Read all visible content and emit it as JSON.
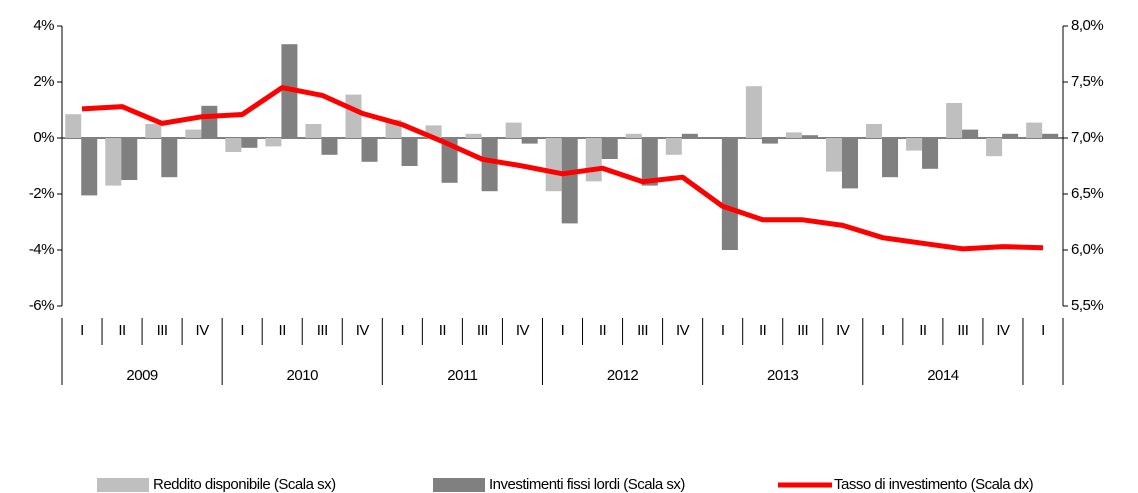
{
  "chart_data": {
    "type": "bar",
    "categories": [
      "I",
      "II",
      "III",
      "IV",
      "I",
      "II",
      "III",
      "IV",
      "I",
      "II",
      "III",
      "IV",
      "I",
      "II",
      "III",
      "IV",
      "I",
      "II",
      "III",
      "IV",
      "I",
      "II",
      "III",
      "IV",
      "I"
    ],
    "year_labels": [
      "2009",
      "2010",
      "2011",
      "2012",
      "2013",
      "2014"
    ],
    "series": [
      {
        "name": "Reddito disponibile (Scala sx)",
        "color": "#bfbfbf",
        "type": "bar",
        "values": [
          0.85,
          -1.7,
          0.5,
          0.3,
          -0.5,
          -0.3,
          0.5,
          1.55,
          0.65,
          0.45,
          0.15,
          0.55,
          -1.9,
          -1.55,
          0.15,
          -0.6,
          0.0,
          1.85,
          0.2,
          -1.2,
          0.5,
          -0.45,
          1.25,
          -0.65,
          0.55
        ]
      },
      {
        "name": "Investimenti fissi lordi (Scala sx)",
        "color": "#808080",
        "type": "bar",
        "values": [
          -2.05,
          -1.5,
          -1.4,
          1.15,
          -0.35,
          3.35,
          -0.6,
          -0.85,
          -1.0,
          -1.6,
          -1.9,
          -0.2,
          -3.05,
          -0.75,
          -1.7,
          0.15,
          -4.0,
          -0.2,
          0.1,
          -1.8,
          -1.4,
          -1.1,
          0.3,
          0.15,
          0.15
        ]
      },
      {
        "name": "Tasso di investimento (Scala dx)",
        "color": "#ff0000",
        "type": "line",
        "axis": "y2",
        "values": [
          7.26,
          7.28,
          7.13,
          7.19,
          7.21,
          7.45,
          7.38,
          7.22,
          7.12,
          6.97,
          6.81,
          6.75,
          6.68,
          6.73,
          6.61,
          6.65,
          6.39,
          6.27,
          6.27,
          6.22,
          6.11,
          6.06,
          6.01,
          6.03,
          6.02
        ]
      }
    ],
    "ylim": [
      -6,
      4
    ],
    "yticks": [
      {
        "value": -6,
        "label": "-6%"
      },
      {
        "value": -4,
        "label": "-4%"
      },
      {
        "value": -2,
        "label": "-2%"
      },
      {
        "value": 0,
        "label": "0%"
      },
      {
        "value": 2,
        "label": "2%"
      },
      {
        "value": 4,
        "label": "4%"
      }
    ],
    "y2lim": [
      5.5,
      8
    ],
    "y2ticks": [
      {
        "value": 5.5,
        "label": "5,5%"
      },
      {
        "value": 6,
        "label": "6,0%"
      },
      {
        "value": 6.5,
        "label": "6,5%"
      },
      {
        "value": 7,
        "label": "7,0%"
      },
      {
        "value": 7.5,
        "label": "7,5%"
      },
      {
        "value": 8,
        "label": "8,0%"
      }
    ]
  }
}
